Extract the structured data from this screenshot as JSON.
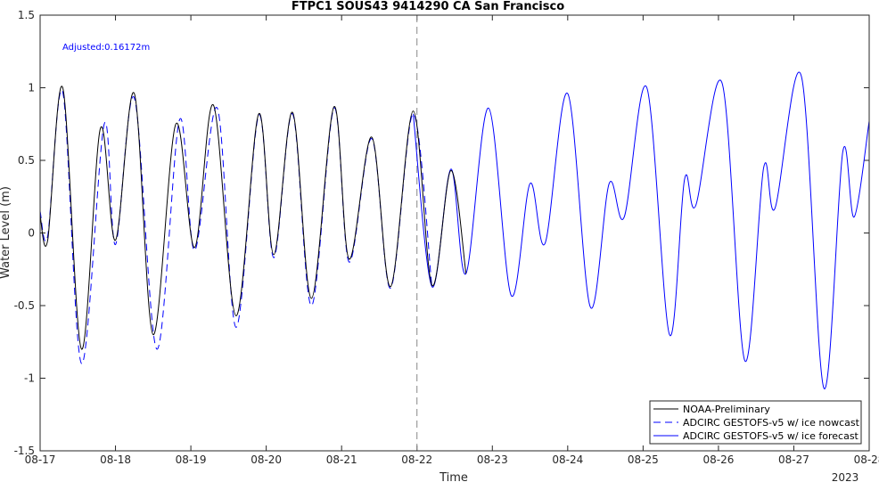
{
  "chart_data": {
    "type": "line",
    "title": "FTPC1 SOUS43 9414290 CA San Francisco",
    "xlabel": "Time",
    "ylabel": "Water Level (m)",
    "ylim": [
      -1.5,
      1.5
    ],
    "xlim": [
      0,
      11
    ],
    "y_ticks": [
      -1.5,
      -1,
      -0.5,
      0,
      0.5,
      1,
      1.5
    ],
    "y_tick_labels": [
      "-1.5",
      "-1",
      "-0.5",
      "0",
      "0.5",
      "1",
      "1.5"
    ],
    "x_ticks": [
      0,
      1,
      2,
      3,
      4,
      5,
      6,
      7,
      8,
      9,
      10,
      11
    ],
    "x_tick_labels": [
      "08-17",
      "08-18",
      "08-19",
      "08-20",
      "08-21",
      "08-22",
      "08-23",
      "08-24",
      "08-25",
      "08-26",
      "08-27",
      "08-28"
    ],
    "x_year_label": "2023",
    "nowcast_forecast_divider_x": 5,
    "annotation": "Adjusted:0.16172m",
    "annotation_color": "#0000ff",
    "legend_position": "bottom-right",
    "series": [
      {
        "name": "NOAA-Preliminary",
        "color": "#000000",
        "style": "solid",
        "points": [
          [
            0.0,
            0.12
          ],
          [
            0.1,
            -0.05
          ],
          [
            0.3,
            1.0
          ],
          [
            0.55,
            -0.8
          ],
          [
            0.8,
            0.72
          ],
          [
            1.0,
            -0.05
          ],
          [
            1.25,
            0.96
          ],
          [
            1.5,
            -0.7
          ],
          [
            1.8,
            0.75
          ],
          [
            2.05,
            -0.1
          ],
          [
            2.3,
            0.88
          ],
          [
            2.6,
            -0.57
          ],
          [
            2.9,
            0.82
          ],
          [
            3.1,
            -0.15
          ],
          [
            3.35,
            0.83
          ],
          [
            3.6,
            -0.45
          ],
          [
            3.9,
            0.87
          ],
          [
            4.1,
            -0.18
          ],
          [
            4.4,
            0.66
          ],
          [
            4.65,
            -0.37
          ],
          [
            4.95,
            0.84
          ],
          [
            5.2,
            -0.36
          ],
          [
            5.45,
            0.43
          ],
          [
            5.65,
            -0.28
          ]
        ]
      },
      {
        "name": "ADCIRC GESTOFS-v5 w/ ice nowcast",
        "color": "#0000ff",
        "style": "dashed",
        "points": [
          [
            0.0,
            0.15
          ],
          [
            0.1,
            -0.02
          ],
          [
            0.3,
            0.97
          ],
          [
            0.55,
            -0.9
          ],
          [
            0.85,
            0.75
          ],
          [
            1.0,
            -0.08
          ],
          [
            1.25,
            0.93
          ],
          [
            1.55,
            -0.8
          ],
          [
            1.85,
            0.78
          ],
          [
            2.05,
            -0.12
          ],
          [
            2.35,
            0.86
          ],
          [
            2.6,
            -0.65
          ],
          [
            2.9,
            0.81
          ],
          [
            3.1,
            -0.17
          ],
          [
            3.35,
            0.82
          ],
          [
            3.6,
            -0.5
          ],
          [
            3.9,
            0.86
          ],
          [
            4.1,
            -0.2
          ],
          [
            4.4,
            0.65
          ],
          [
            4.65,
            -0.38
          ],
          [
            4.95,
            0.82
          ],
          [
            5.2,
            -0.38
          ]
        ]
      },
      {
        "name": "ADCIRC GESTOFS-v5 w/ ice forecast",
        "color": "#0000ff",
        "style": "solid",
        "points": [
          [
            4.95,
            0.82
          ],
          [
            5.2,
            -0.37
          ],
          [
            5.45,
            0.44
          ],
          [
            5.65,
            -0.28
          ],
          [
            5.95,
            0.86
          ],
          [
            6.25,
            -0.43
          ],
          [
            6.5,
            0.34
          ],
          [
            6.7,
            -0.07
          ],
          [
            7.0,
            0.96
          ],
          [
            7.3,
            -0.51
          ],
          [
            7.55,
            0.34
          ],
          [
            7.75,
            0.11
          ],
          [
            8.05,
            1.0
          ],
          [
            8.35,
            -0.7
          ],
          [
            8.55,
            0.37
          ],
          [
            8.7,
            0.19
          ],
          [
            9.05,
            1.03
          ],
          [
            9.35,
            -0.88
          ],
          [
            9.6,
            0.45
          ],
          [
            9.75,
            0.17
          ],
          [
            10.1,
            1.08
          ],
          [
            10.4,
            -1.07
          ],
          [
            10.65,
            0.56
          ],
          [
            10.8,
            0.11
          ],
          [
            11.0,
            0.77
          ]
        ]
      }
    ]
  }
}
